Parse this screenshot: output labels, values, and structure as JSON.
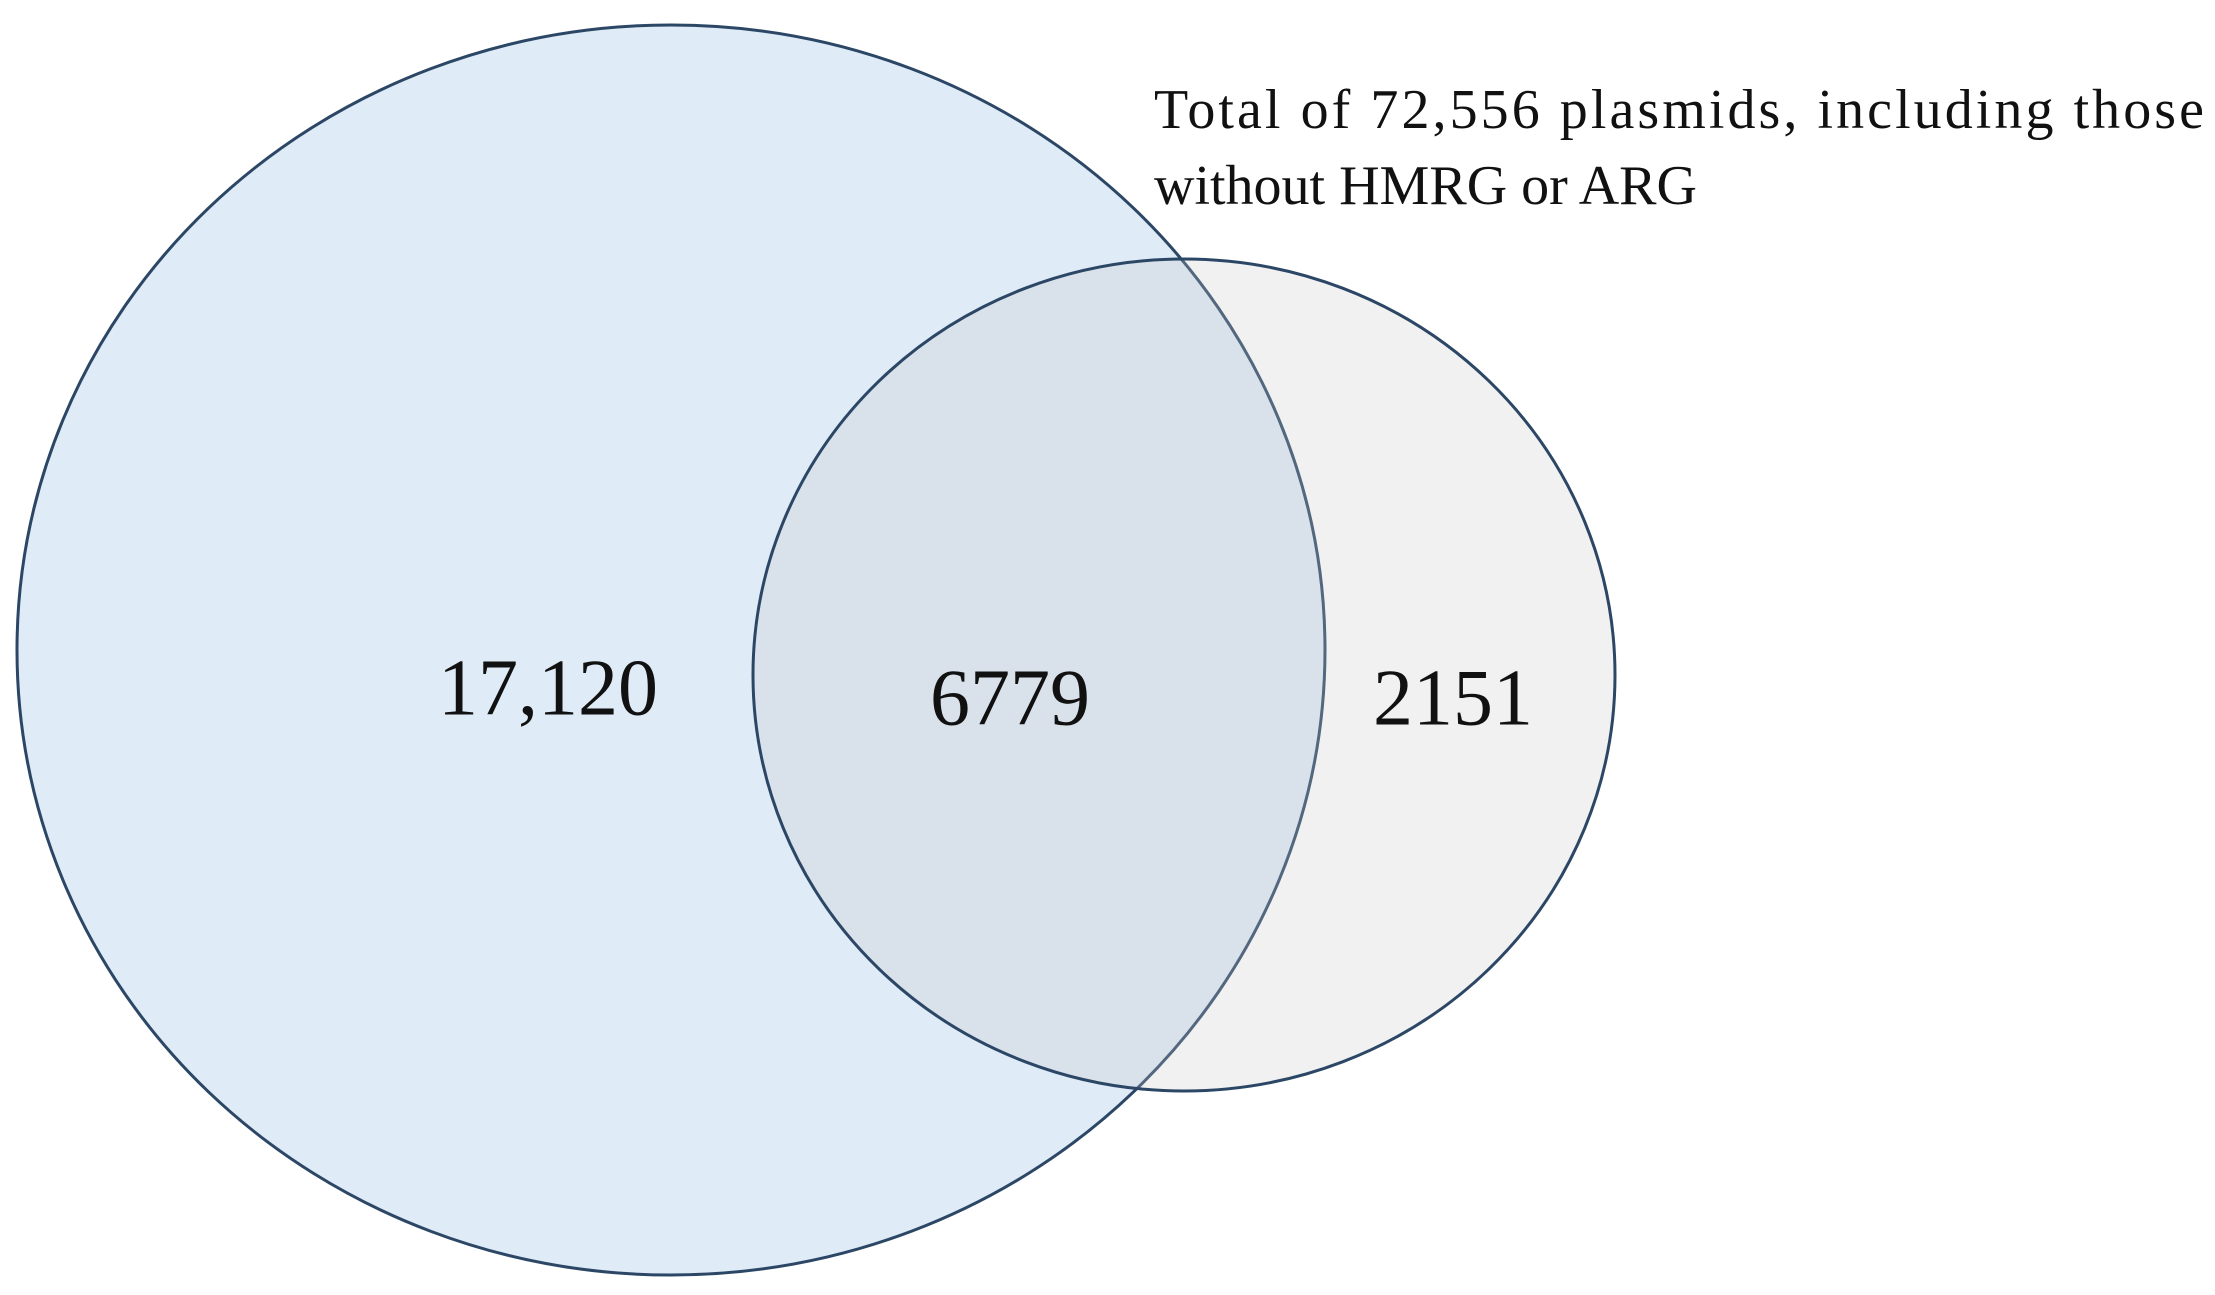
{
  "note": {
    "lines": [
      "Total of 72,556 plasmids, including those",
      "without HMRG or ARG"
    ]
  },
  "regions": [
    {
      "label": "17,120"
    },
    {
      "label": "6779"
    },
    {
      "label": "2151"
    }
  ]
}
